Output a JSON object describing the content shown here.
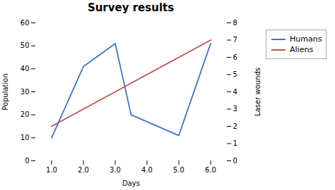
{
  "chart_data": {
    "type": "line",
    "title": "Survey results",
    "xlabel": "Days",
    "ylabel": "Population",
    "y2label": "Laser wounds",
    "xlim": [
      0.5,
      6.5
    ],
    "xticks": [
      1,
      2,
      3,
      4,
      5,
      6
    ],
    "ylim": [
      0,
      60
    ],
    "yticks": [
      0,
      10,
      20,
      30,
      40,
      50,
      60
    ],
    "y2lim": [
      0,
      8
    ],
    "y2ticks": [
      0,
      1,
      2,
      3,
      4,
      5,
      6,
      7,
      8
    ],
    "grid": false,
    "legend": "right",
    "series": [
      {
        "name": "Humans",
        "color": "#4472C4",
        "x": [
          1,
          2,
          3,
          3.5,
          5,
          6
        ],
        "values": [
          10,
          41,
          51,
          20,
          11,
          51
        ]
      },
      {
        "name": "Aliens",
        "color": "#C0504D",
        "axis": "y2",
        "x": [
          1,
          6
        ],
        "values": [
          2,
          7
        ]
      }
    ]
  }
}
